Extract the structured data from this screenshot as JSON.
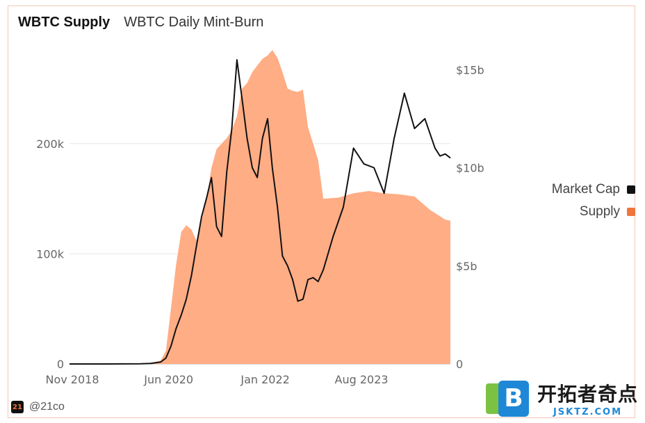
{
  "tabs": [
    {
      "label": "WBTC Supply",
      "active": true
    },
    {
      "label": "WBTC Daily Mint-Burn",
      "active": false
    }
  ],
  "legend": [
    {
      "label": "Market Cap",
      "color": "#111111"
    },
    {
      "label": "Supply",
      "color": "#f0743c"
    }
  ],
  "footer": {
    "handle": "@21co",
    "logo_text": "21"
  },
  "watermark": {
    "letter": "B",
    "text": "开拓者奇点",
    "url": "JSKTZ.COM"
  },
  "chart_data": {
    "type": "area",
    "x_ticks": [
      "Nov 2018",
      "Jun 2020",
      "Jan 2022",
      "Aug 2023"
    ],
    "y_left": {
      "ticks": [
        "0",
        "100k",
        "200k"
      ],
      "range": [
        0,
        285000
      ]
    },
    "y_right": {
      "ticks": [
        "0",
        "$5b",
        "$10b",
        "$15b"
      ],
      "range": [
        0,
        16000000000
      ]
    },
    "series": [
      {
        "name": "Supply",
        "axis": "left",
        "style": "area",
        "color": "#ffad85",
        "x": [
          "2018-11",
          "2019-06",
          "2020-01",
          "2020-03",
          "2020-05",
          "2020-06",
          "2020-07",
          "2020-08",
          "2020-09",
          "2020-10",
          "2020-11",
          "2020-12",
          "2021-01",
          "2021-02",
          "2021-03",
          "2021-04",
          "2021-05",
          "2021-06",
          "2021-07",
          "2021-08",
          "2021-09",
          "2021-10",
          "2021-11",
          "2021-12",
          "2022-01",
          "2022-02",
          "2022-03",
          "2022-04",
          "2022-05",
          "2022-06",
          "2022-07",
          "2022-08",
          "2022-09",
          "2022-10",
          "2022-11",
          "2022-12",
          "2023-01",
          "2023-04",
          "2023-07",
          "2023-10",
          "2024-01",
          "2024-04",
          "2024-07",
          "2024-10",
          "2025-01",
          "2025-02"
        ],
        "y": [
          0,
          0,
          500,
          1000,
          3000,
          12000,
          50000,
          90000,
          120000,
          126000,
          122000,
          112000,
          130000,
          150000,
          178000,
          195000,
          200000,
          205000,
          212000,
          225000,
          250000,
          255000,
          265000,
          271000,
          277000,
          280000,
          285000,
          278000,
          265000,
          250000,
          248000,
          247000,
          249000,
          215000,
          200000,
          185000,
          150000,
          151000,
          155000,
          157000,
          155000,
          154000,
          152000,
          140000,
          131000,
          130000
        ]
      },
      {
        "name": "Market Cap",
        "axis": "right",
        "style": "line",
        "color": "#111111",
        "x": [
          "2018-11",
          "2019-06",
          "2020-01",
          "2020-03",
          "2020-05",
          "2020-06",
          "2020-07",
          "2020-08",
          "2020-09",
          "2020-10",
          "2020-11",
          "2020-12",
          "2021-01",
          "2021-02",
          "2021-03",
          "2021-04",
          "2021-05",
          "2021-06",
          "2021-07",
          "2021-08",
          "2021-09",
          "2021-10",
          "2021-11",
          "2021-12",
          "2022-01",
          "2022-02",
          "2022-03",
          "2022-04",
          "2022-05",
          "2022-06",
          "2022-07",
          "2022-08",
          "2022-09",
          "2022-10",
          "2022-11",
          "2022-12",
          "2023-01",
          "2023-03",
          "2023-05",
          "2023-07",
          "2023-09",
          "2023-11",
          "2024-01",
          "2024-03",
          "2024-05",
          "2024-07",
          "2024-09",
          "2024-11",
          "2024-12",
          "2025-01",
          "2025-02"
        ],
        "y": [
          0,
          0,
          0.01,
          0.03,
          0.1,
          0.3,
          0.9,
          1.8,
          2.5,
          3.3,
          4.5,
          6.0,
          7.5,
          8.5,
          9.5,
          7.0,
          6.5,
          9.8,
          12.0,
          15.5,
          13.5,
          11.5,
          10.0,
          9.5,
          11.5,
          12.5,
          10.0,
          8.0,
          5.5,
          5.0,
          4.3,
          3.2,
          3.3,
          4.3,
          4.4,
          4.2,
          4.8,
          6.5,
          8.0,
          11.0,
          10.2,
          10.0,
          8.7,
          11.5,
          13.8,
          12.0,
          12.5,
          11.0,
          10.6,
          10.7,
          10.5
        ]
      }
    ],
    "y_right_unit": "billions"
  }
}
